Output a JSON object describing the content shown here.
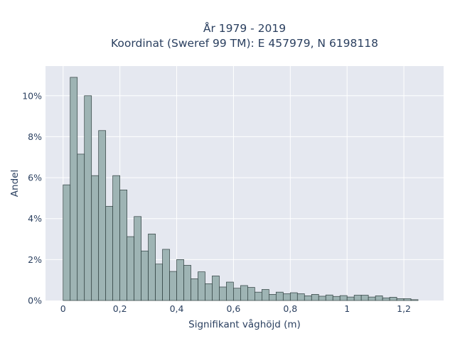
{
  "chart_data": {
    "type": "bar",
    "title": [
      "År 1979 - 2019",
      "Koordinat (Sweref 99 TM): E 457979, N 6198118"
    ],
    "xlabel": "Signifikant våghöjd (m)",
    "ylabel": "Andel",
    "xlim": [
      -0.062,
      1.34
    ],
    "ylim": [
      0,
      0.1145
    ],
    "x_ticks": [
      {
        "value": 0,
        "label": "0"
      },
      {
        "value": 0.2,
        "label": "0,2"
      },
      {
        "value": 0.4,
        "label": "0,4"
      },
      {
        "value": 0.6,
        "label": "0,6"
      },
      {
        "value": 0.8,
        "label": "0,8"
      },
      {
        "value": 1.0,
        "label": "1"
      },
      {
        "value": 1.2,
        "label": "1,2"
      }
    ],
    "y_ticks": [
      {
        "value": 0,
        "label": "0%"
      },
      {
        "value": 0.02,
        "label": "2%"
      },
      {
        "value": 0.04,
        "label": "4%"
      },
      {
        "value": 0.06,
        "label": "6%"
      },
      {
        "value": 0.08,
        "label": "8%"
      },
      {
        "value": 0.1,
        "label": "10%"
      }
    ],
    "bin_start": 0,
    "bin_width": 0.025,
    "values": [
      0.0565,
      0.109,
      0.0715,
      0.1,
      0.061,
      0.083,
      0.046,
      0.061,
      0.054,
      0.0312,
      0.041,
      0.0242,
      0.0325,
      0.0178,
      0.025,
      0.0142,
      0.02,
      0.0172,
      0.0106,
      0.014,
      0.0082,
      0.012,
      0.0066,
      0.009,
      0.006,
      0.0073,
      0.0064,
      0.0041,
      0.0054,
      0.003,
      0.0041,
      0.0033,
      0.0038,
      0.0033,
      0.0023,
      0.003,
      0.0021,
      0.0027,
      0.002,
      0.0024,
      0.0017,
      0.0026,
      0.0026,
      0.0017,
      0.0023,
      0.0013,
      0.0016,
      0.0009,
      0.0009,
      0.0004
    ],
    "grid": true,
    "legend": "none",
    "colors": {
      "plot_background": "#e5e8f0",
      "grid": "#ffffff",
      "bar_fill": "#9eb4b4",
      "bar_edge": "#2f3f3f",
      "text": "#2a3f5f"
    }
  }
}
